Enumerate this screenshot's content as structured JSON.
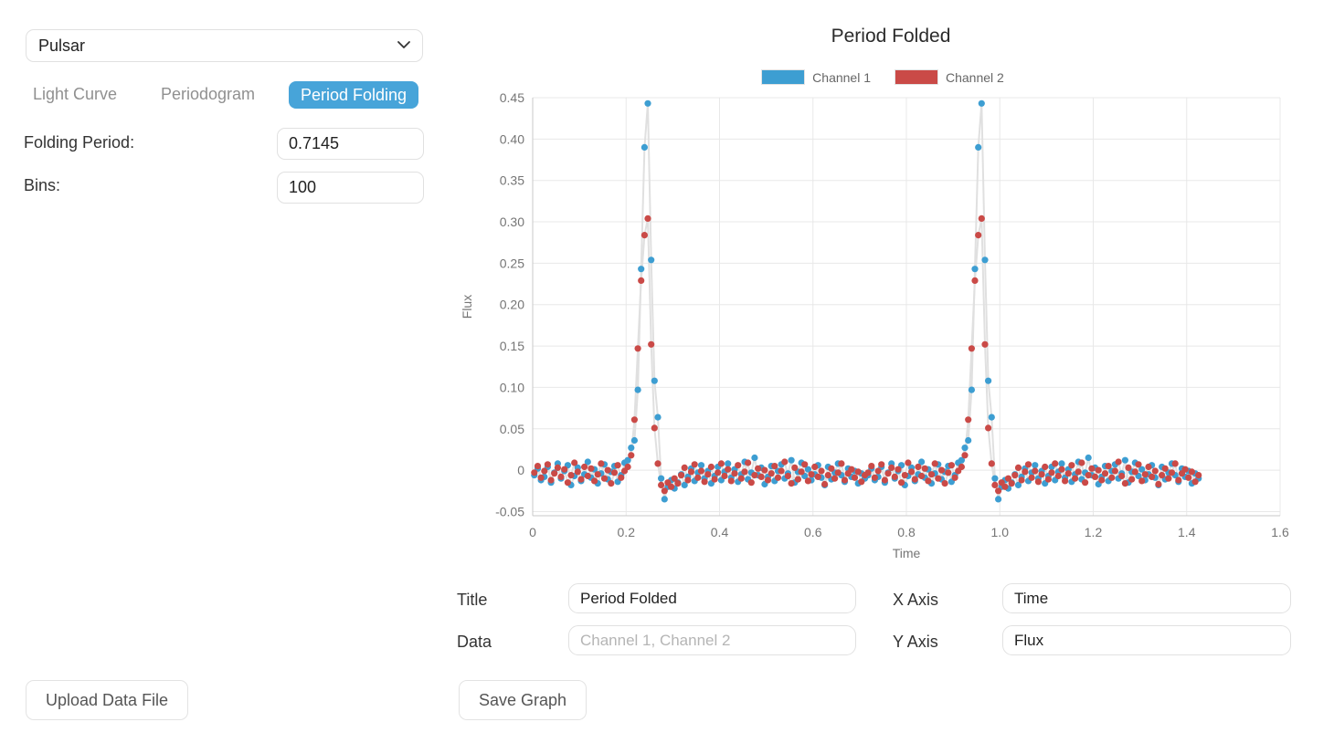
{
  "left_panel": {
    "dataset_select": {
      "value": "Pulsar"
    },
    "tabs": [
      {
        "label": "Light Curve",
        "active": false
      },
      {
        "label": "Periodogram",
        "active": false
      },
      {
        "label": "Period Folding",
        "active": true
      }
    ],
    "folding_period": {
      "label": "Folding Period:",
      "value": "0.7145"
    },
    "bins": {
      "label": "Bins:",
      "value": "100"
    },
    "upload_button_label": "Upload Data File"
  },
  "graph_form": {
    "title_field": {
      "label": "Title",
      "value": "Period Folded"
    },
    "data_field": {
      "label": "Data",
      "placeholder": "Channel 1, Channel 2"
    },
    "x_axis_field": {
      "label": "X Axis",
      "value": "Time"
    },
    "y_axis_field": {
      "label": "Y Axis",
      "value": "Flux"
    },
    "save_button_label": "Save Graph"
  },
  "colors": {
    "accent_blue": "#47a4d9",
    "channel1_blue": "#3d9ed2",
    "channel2_red": "#ca4a47",
    "grid": "#e8e8e8",
    "axis": "#c9c9c9",
    "tick_text": "#757575",
    "connector_line": "#e0e0e0"
  },
  "chart_data": {
    "type": "scatter",
    "title": "Period Folded",
    "xlabel": "Time",
    "ylabel": "Flux",
    "xlim": [
      0,
      1.6
    ],
    "ylim": [
      -0.055,
      0.45
    ],
    "grid": true,
    "legend_position": "top",
    "x_ticks": {
      "values": [
        0,
        0.2,
        0.4,
        0.6,
        0.8,
        1.0,
        1.2,
        1.4,
        1.6
      ],
      "labels": [
        "0",
        "0.2",
        "0.4",
        "0.6",
        "0.8",
        "1.0",
        "1.2",
        "1.4",
        "1.6"
      ]
    },
    "y_ticks": {
      "values": [
        0.45,
        0.4,
        0.35,
        0.3,
        0.25,
        0.2,
        0.15,
        0.1,
        0.05,
        0,
        -0.05
      ],
      "labels": [
        "0.45",
        "0.40",
        "0.35",
        "0.30",
        "0.25",
        "0.20",
        "0.15",
        "0.10",
        "0.05",
        "0",
        "-0.05"
      ]
    },
    "folding_period": 0.7145,
    "bins_per_period": 100,
    "periods_shown": 2,
    "peak_phase": 0.2465,
    "series": [
      {
        "name": "Channel 1",
        "color": "#3d9ed2",
        "peak_flux": 0.443,
        "phase_flux": [
          -0.006,
          0.002,
          -0.012,
          -0.008,
          0.004,
          -0.015,
          -0.003,
          0.008,
          -0.01,
          -0.001,
          0.006,
          -0.018,
          -0.007,
          0.003,
          -0.013,
          -0.005,
          0.01,
          -0.009,
          0.001,
          -0.016,
          -0.004,
          0.007,
          -0.011,
          -0.002,
          0.005,
          -0.014,
          -0.006,
          0.009,
          0.012,
          0.027,
          0.036,
          0.097,
          0.243,
          0.39,
          0.443,
          0.254,
          0.108,
          0.064,
          -0.01,
          -0.035,
          -0.02,
          -0.012,
          -0.022,
          -0.015,
          -0.005,
          -0.018,
          -0.008,
          0.002,
          -0.013,
          -0.003,
          0.006,
          -0.01,
          -0.001,
          -0.016,
          -0.007,
          0.004,
          -0.012,
          -0.002,
          0.008,
          -0.009,
          0.001,
          -0.014,
          -0.005,
          0.01,
          -0.011,
          -0.003,
          0.015,
          -0.006,
          0.003,
          -0.017,
          -0.008,
          0.005,
          -0.013,
          -0.001,
          0.007,
          -0.01,
          -0.004,
          0.012,
          -0.015,
          -0.002,
          0.009,
          -0.007,
          0.001,
          -0.012,
          -0.005,
          0.006,
          -0.009,
          -0.018,
          0.004,
          -0.011,
          -0.003,
          0.008,
          -0.006,
          -0.014,
          0.002,
          -0.008,
          -0.001,
          -0.016,
          -0.004,
          -0.01
        ]
      },
      {
        "name": "Channel 2",
        "color": "#ca4a47",
        "peak_flux": 0.304,
        "phase_flux": [
          -0.003,
          0.005,
          -0.009,
          -0.001,
          0.007,
          -0.012,
          -0.004,
          0.003,
          -0.008,
          0.001,
          -0.015,
          -0.006,
          0.009,
          -0.002,
          -0.011,
          0.004,
          -0.007,
          0.002,
          -0.013,
          -0.005,
          0.008,
          -0.01,
          0,
          -0.016,
          -0.003,
          0.006,
          -0.009,
          -0.001,
          0.004,
          0.018,
          0.061,
          0.147,
          0.229,
          0.284,
          0.304,
          0.152,
          0.051,
          0.008,
          -0.018,
          -0.025,
          -0.015,
          -0.02,
          -0.01,
          -0.016,
          -0.006,
          0.003,
          -0.012,
          -0.002,
          0.007,
          -0.009,
          -0.001,
          -0.014,
          -0.005,
          0.004,
          -0.011,
          -0.003,
          0.008,
          -0.007,
          0.001,
          -0.013,
          -0.004,
          0.006,
          -0.01,
          -0.002,
          0.009,
          -0.015,
          -0.006,
          0.002,
          -0.008,
          0,
          -0.012,
          -0.004,
          0.005,
          -0.009,
          -0.001,
          0.01,
          -0.007,
          -0.016,
          0.003,
          -0.011,
          -0.002,
          0.007,
          -0.013,
          -0.005,
          0.004,
          -0.008,
          -0.001,
          -0.017,
          -0.006,
          0.002,
          -0.01,
          -0.003,
          0.008,
          -0.012,
          -0.004,
          0.001,
          -0.009,
          -0.002,
          -0.014,
          -0.006
        ]
      }
    ]
  }
}
